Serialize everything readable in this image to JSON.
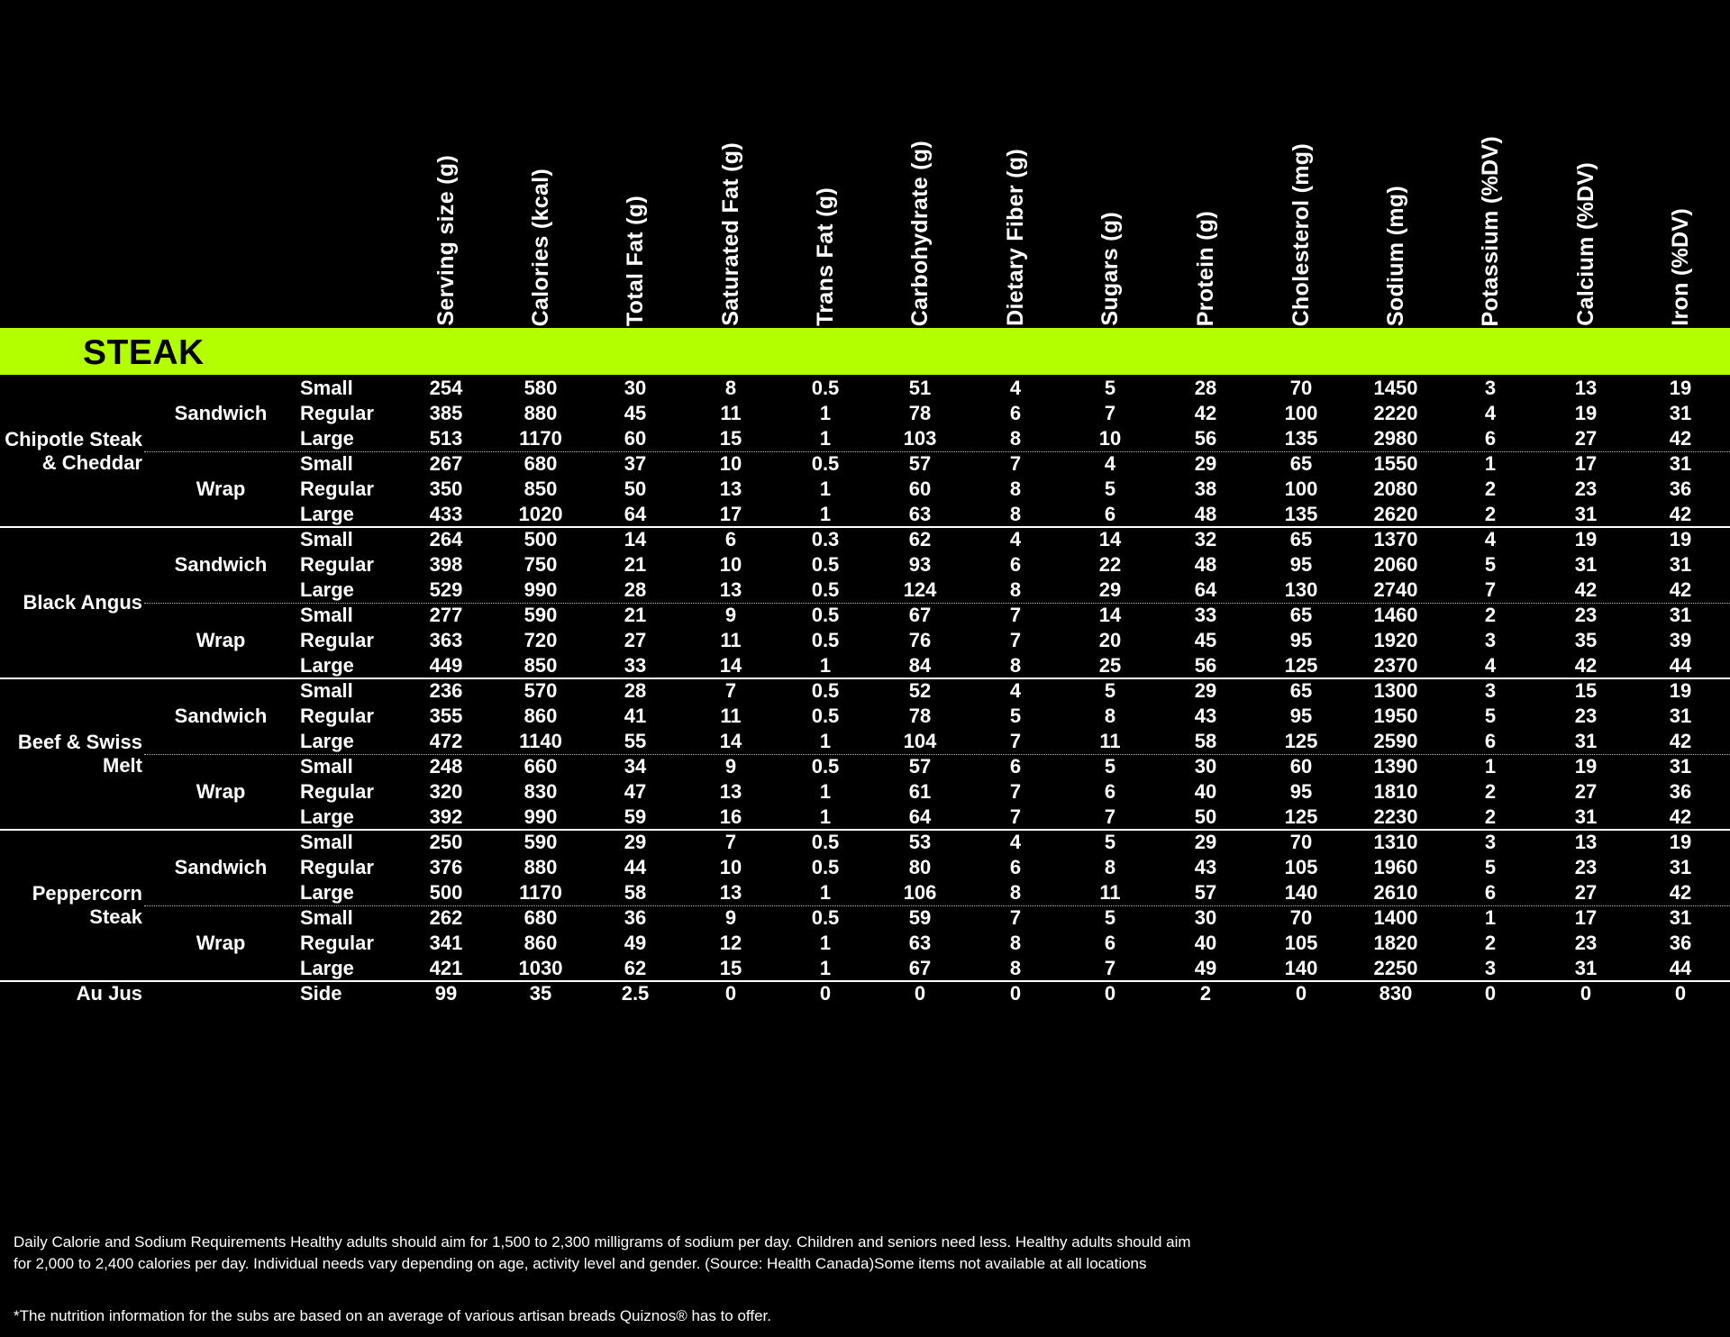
{
  "columns": [
    "Serving size (g)",
    "Calories (kcal)",
    "Total Fat (g)",
    "Saturated Fat (g)",
    "Trans Fat (g)",
    "Carbohydrate (g)",
    "Dietary Fiber (g)",
    "Sugars (g)",
    "Protein (g)",
    "Cholesterol (mg)",
    "Sodium (mg)",
    "Potassium (%DV)",
    "Calcium (%DV)",
    "Iron (%DV)"
  ],
  "section": {
    "title": "STEAK",
    "color": "#b3ff00"
  },
  "items": [
    {
      "name": "Chipotle Steak & Cheddar",
      "variants": [
        {
          "type": "Sandwich",
          "rows": [
            {
              "size": "Small",
              "values": [
                "254",
                "580",
                "30",
                "8",
                "0.5",
                "51",
                "4",
                "5",
                "28",
                "70",
                "1450",
                "3",
                "13",
                "19"
              ]
            },
            {
              "size": "Regular",
              "values": [
                "385",
                "880",
                "45",
                "11",
                "1",
                "78",
                "6",
                "7",
                "42",
                "100",
                "2220",
                "4",
                "19",
                "31"
              ]
            },
            {
              "size": "Large",
              "values": [
                "513",
                "1170",
                "60",
                "15",
                "1",
                "103",
                "8",
                "10",
                "56",
                "135",
                "2980",
                "6",
                "27",
                "42"
              ]
            }
          ]
        },
        {
          "type": "Wrap",
          "rows": [
            {
              "size": "Small",
              "values": [
                "267",
                "680",
                "37",
                "10",
                "0.5",
                "57",
                "7",
                "4",
                "29",
                "65",
                "1550",
                "1",
                "17",
                "31"
              ]
            },
            {
              "size": "Regular",
              "values": [
                "350",
                "850",
                "50",
                "13",
                "1",
                "60",
                "8",
                "5",
                "38",
                "100",
                "2080",
                "2",
                "23",
                "36"
              ]
            },
            {
              "size": "Large",
              "values": [
                "433",
                "1020",
                "64",
                "17",
                "1",
                "63",
                "8",
                "6",
                "48",
                "135",
                "2620",
                "2",
                "31",
                "42"
              ]
            }
          ]
        }
      ]
    },
    {
      "name": "Black Angus",
      "variants": [
        {
          "type": "Sandwich",
          "rows": [
            {
              "size": "Small",
              "values": [
                "264",
                "500",
                "14",
                "6",
                "0.3",
                "62",
                "4",
                "14",
                "32",
                "65",
                "1370",
                "4",
                "19",
                "19"
              ]
            },
            {
              "size": "Regular",
              "values": [
                "398",
                "750",
                "21",
                "10",
                "0.5",
                "93",
                "6",
                "22",
                "48",
                "95",
                "2060",
                "5",
                "31",
                "31"
              ]
            },
            {
              "size": "Large",
              "values": [
                "529",
                "990",
                "28",
                "13",
                "0.5",
                "124",
                "8",
                "29",
                "64",
                "130",
                "2740",
                "7",
                "42",
                "42"
              ]
            }
          ]
        },
        {
          "type": "Wrap",
          "rows": [
            {
              "size": "Small",
              "values": [
                "277",
                "590",
                "21",
                "9",
                "0.5",
                "67",
                "7",
                "14",
                "33",
                "65",
                "1460",
                "2",
                "23",
                "31"
              ]
            },
            {
              "size": "Regular",
              "values": [
                "363",
                "720",
                "27",
                "11",
                "0.5",
                "76",
                "7",
                "20",
                "45",
                "95",
                "1920",
                "3",
                "35",
                "39"
              ]
            },
            {
              "size": "Large",
              "values": [
                "449",
                "850",
                "33",
                "14",
                "1",
                "84",
                "8",
                "25",
                "56",
                "125",
                "2370",
                "4",
                "42",
                "44"
              ]
            }
          ]
        }
      ]
    },
    {
      "name": "Beef & Swiss Melt",
      "variants": [
        {
          "type": "Sandwich",
          "rows": [
            {
              "size": "Small",
              "values": [
                "236",
                "570",
                "28",
                "7",
                "0.5",
                "52",
                "4",
                "5",
                "29",
                "65",
                "1300",
                "3",
                "15",
                "19"
              ]
            },
            {
              "size": "Regular",
              "values": [
                "355",
                "860",
                "41",
                "11",
                "0.5",
                "78",
                "5",
                "8",
                "43",
                "95",
                "1950",
                "5",
                "23",
                "31"
              ]
            },
            {
              "size": "Large",
              "values": [
                "472",
                "1140",
                "55",
                "14",
                "1",
                "104",
                "7",
                "11",
                "58",
                "125",
                "2590",
                "6",
                "31",
                "42"
              ]
            }
          ]
        },
        {
          "type": "Wrap",
          "rows": [
            {
              "size": "Small",
              "values": [
                "248",
                "660",
                "34",
                "9",
                "0.5",
                "57",
                "6",
                "5",
                "30",
                "60",
                "1390",
                "1",
                "19",
                "31"
              ]
            },
            {
              "size": "Regular",
              "values": [
                "320",
                "830",
                "47",
                "13",
                "1",
                "61",
                "7",
                "6",
                "40",
                "95",
                "1810",
                "2",
                "27",
                "36"
              ]
            },
            {
              "size": "Large",
              "values": [
                "392",
                "990",
                "59",
                "16",
                "1",
                "64",
                "7",
                "7",
                "50",
                "125",
                "2230",
                "2",
                "31",
                "42"
              ]
            }
          ]
        }
      ]
    },
    {
      "name": "Peppercorn Steak",
      "variants": [
        {
          "type": "Sandwich",
          "rows": [
            {
              "size": "Small",
              "values": [
                "250",
                "590",
                "29",
                "7",
                "0.5",
                "53",
                "4",
                "5",
                "29",
                "70",
                "1310",
                "3",
                "13",
                "19"
              ]
            },
            {
              "size": "Regular",
              "values": [
                "376",
                "880",
                "44",
                "10",
                "0.5",
                "80",
                "6",
                "8",
                "43",
                "105",
                "1960",
                "5",
                "23",
                "31"
              ]
            },
            {
              "size": "Large",
              "values": [
                "500",
                "1170",
                "58",
                "13",
                "1",
                "106",
                "8",
                "11",
                "57",
                "140",
                "2610",
                "6",
                "27",
                "42"
              ]
            }
          ]
        },
        {
          "type": "Wrap",
          "rows": [
            {
              "size": "Small",
              "values": [
                "262",
                "680",
                "36",
                "9",
                "0.5",
                "59",
                "7",
                "5",
                "30",
                "70",
                "1400",
                "1",
                "17",
                "31"
              ]
            },
            {
              "size": "Regular",
              "values": [
                "341",
                "860",
                "49",
                "12",
                "1",
                "63",
                "8",
                "6",
                "40",
                "105",
                "1820",
                "2",
                "23",
                "36"
              ]
            },
            {
              "size": "Large",
              "values": [
                "421",
                "1030",
                "62",
                "15",
                "1",
                "67",
                "8",
                "7",
                "49",
                "140",
                "2250",
                "3",
                "31",
                "44"
              ]
            }
          ]
        }
      ]
    },
    {
      "name": "Au Jus",
      "variants": [
        {
          "type": "",
          "rows": [
            {
              "size": "Side",
              "values": [
                "99",
                "35",
                "2.5",
                "0",
                "0",
                "0",
                "0",
                "0",
                "2",
                "0",
                "830",
                "0",
                "0",
                "0"
              ]
            }
          ]
        }
      ]
    }
  ],
  "footer": {
    "note": "Daily Calorie and Sodium Requirements Healthy adults should aim for 1,500 to 2,300 milligrams of sodium per day. Children and seniors need less. Healthy adults should aim for 2,000 to 2,400 calories per day. Individual needs vary depending on age, activity level and gender. (Source: Health Canada)Some items not available at all locations",
    "disclaimer": "*The nutrition information for the subs are based on an average of various artisan breads Quiznos® has to offer."
  }
}
